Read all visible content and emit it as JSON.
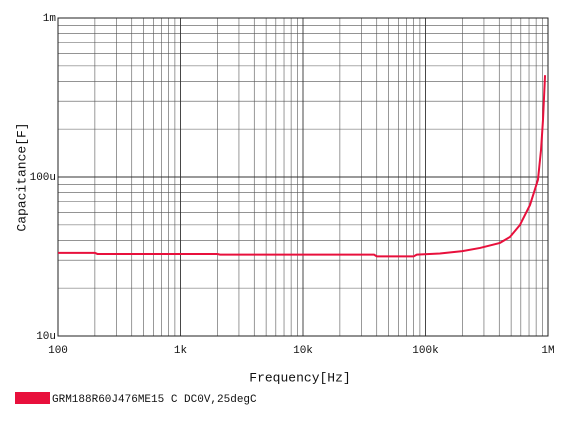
{
  "chart_data": {
    "type": "line",
    "xlabel": "Frequency[Hz]",
    "ylabel": "Capacitance[F]",
    "x": [
      100,
      200,
      210,
      1000,
      2000,
      2100,
      10000,
      38000,
      40000,
      80000,
      85000,
      131000,
      200000,
      279000,
      405000,
      490000,
      590000,
      713000,
      828000,
      877000,
      910000,
      946000
    ],
    "series": [
      {
        "name": "GRM188R60J476ME15 C DC0V,25degC",
        "color": "#e8103c",
        "values": [
          3.33e-05,
          3.33e-05,
          3.28e-05,
          3.28e-05,
          3.28e-05,
          3.25e-05,
          3.25e-05,
          3.25e-05,
          3.17e-05,
          3.17e-05,
          3.25e-05,
          3.3e-05,
          3.42e-05,
          3.58e-05,
          3.85e-05,
          4.2e-05,
          4.99e-05,
          6.67e-05,
          9.6e-05,
          0.000148,
          0.000228,
          0.000437
        ]
      }
    ],
    "xlim": [
      100,
      1000000
    ],
    "ylim": [
      1e-05,
      0.001
    ],
    "xticks": [
      100,
      {
        "value": 1000,
        "label": "1k"
      },
      {
        "value": 10000,
        "label": "10k"
      },
      {
        "value": 100000,
        "label": "100k"
      },
      {
        "value": 1000000,
        "label": "1M"
      }
    ],
    "yticks": [
      {
        "value": 1e-05,
        "label": "10u"
      },
      {
        "value": 0.0001,
        "label": "100u"
      },
      {
        "value": 0.001,
        "label": "1m"
      }
    ],
    "log_x": true,
    "log_y": true,
    "grid": true,
    "minor_grid": true,
    "legend": "bottom-left"
  }
}
